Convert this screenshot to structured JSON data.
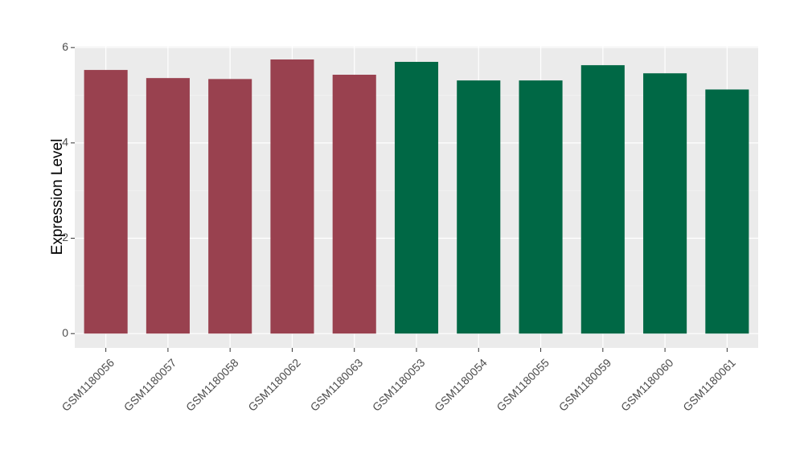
{
  "chart_data": {
    "type": "bar",
    "y_label": "Expression Level",
    "categories": [
      "GSM1180056",
      "GSM1180057",
      "GSM1180058",
      "GSM1180062",
      "GSM1180063",
      "GSM1180053",
      "GSM1180054",
      "GSM1180055",
      "GSM1180059",
      "GSM1180060",
      "GSM1180061"
    ],
    "values": [
      5.53,
      5.36,
      5.34,
      5.75,
      5.43,
      5.7,
      5.31,
      5.31,
      5.63,
      5.46,
      5.12
    ],
    "colors": [
      "#99414f",
      "#99414f",
      "#99414f",
      "#99414f",
      "#99414f",
      "#006845",
      "#006845",
      "#006845",
      "#006845",
      "#006845",
      "#006845"
    ],
    "ylim": [
      -0.3,
      6.02
    ],
    "yticks": [
      0,
      2,
      4,
      6
    ],
    "minor_yticks": [
      1,
      3,
      5
    ],
    "grid": true
  }
}
